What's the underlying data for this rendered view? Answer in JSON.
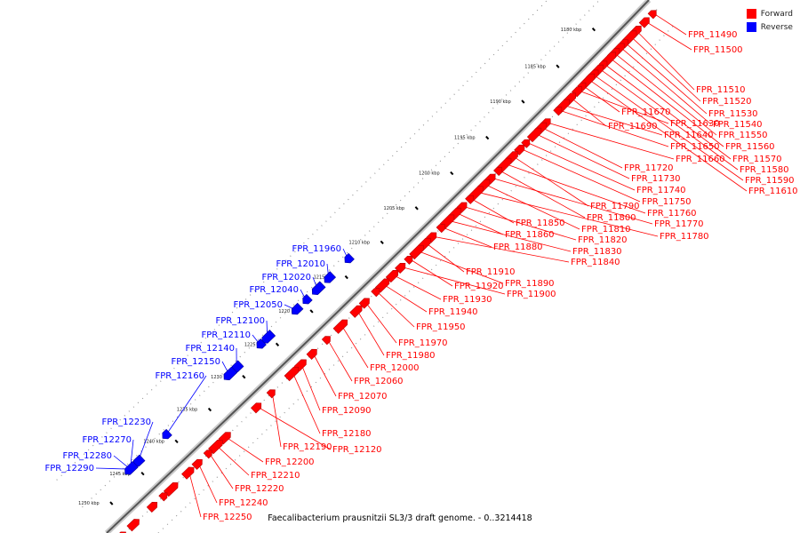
{
  "legend": {
    "forward_label": "Forward",
    "forward_color": "#ff0000",
    "reverse_label": "Reverse",
    "reverse_color": "#0000ff"
  },
  "caption": "Faecalibacterium prausnitzii SL3/3 draft genome. - 0..3214418",
  "backbone_ticks": [
    "1180 kbp",
    "1185 kbp",
    "1190 kbp",
    "1195 kbp",
    "1200 kbp",
    "1205 kbp",
    "1210 kbp",
    "1215 kbp",
    "1220 kbp",
    "1225 kbp",
    "1230 kbp",
    "1235 kbp",
    "1240 kbp",
    "1245 kbp",
    "1250 kbp"
  ],
  "forward_labels": [
    "FPR_11490",
    "FPR_11500",
    "FPR_11510",
    "FPR_11520",
    "FPR_11530",
    "FPR_11540",
    "FPR_11550",
    "FPR_11560",
    "FPR_11570",
    "FPR_11580",
    "FPR_11590",
    "FPR_11610",
    "FPR_11670",
    "FPR_11630",
    "FPR_11690",
    "FPR_11640",
    "FPR_11650",
    "FPR_11660",
    "FPR_11720",
    "FPR_11730",
    "FPR_11740",
    "FPR_11750",
    "FPR_11790",
    "FPR_11760",
    "FPR_11800",
    "FPR_11770",
    "FPR_11810",
    "FPR_11780",
    "FPR_11850",
    "FPR_11820",
    "FPR_11860",
    "FPR_11830",
    "FPR_11880",
    "FPR_11840",
    "FPR_11910",
    "FPR_11890",
    "FPR_11920",
    "FPR_11900",
    "FPR_11930",
    "FPR_11940",
    "FPR_11950",
    "FPR_11970",
    "FPR_11980",
    "FPR_12000",
    "FPR_12060",
    "FPR_12070",
    "FPR_12090",
    "FPR_12180",
    "FPR_12190",
    "FPR_12120",
    "FPR_12200",
    "FPR_12210",
    "FPR_12220",
    "FPR_12240",
    "FPR_12250"
  ],
  "reverse_labels": [
    "FPR_11960",
    "FPR_12010",
    "FPR_12020",
    "FPR_12040",
    "FPR_12050",
    "FPR_12100",
    "FPR_12110",
    "FPR_12140",
    "FPR_12150",
    "FPR_12160",
    "FPR_12230",
    "FPR_12270",
    "FPR_12280",
    "FPR_12290"
  ]
}
